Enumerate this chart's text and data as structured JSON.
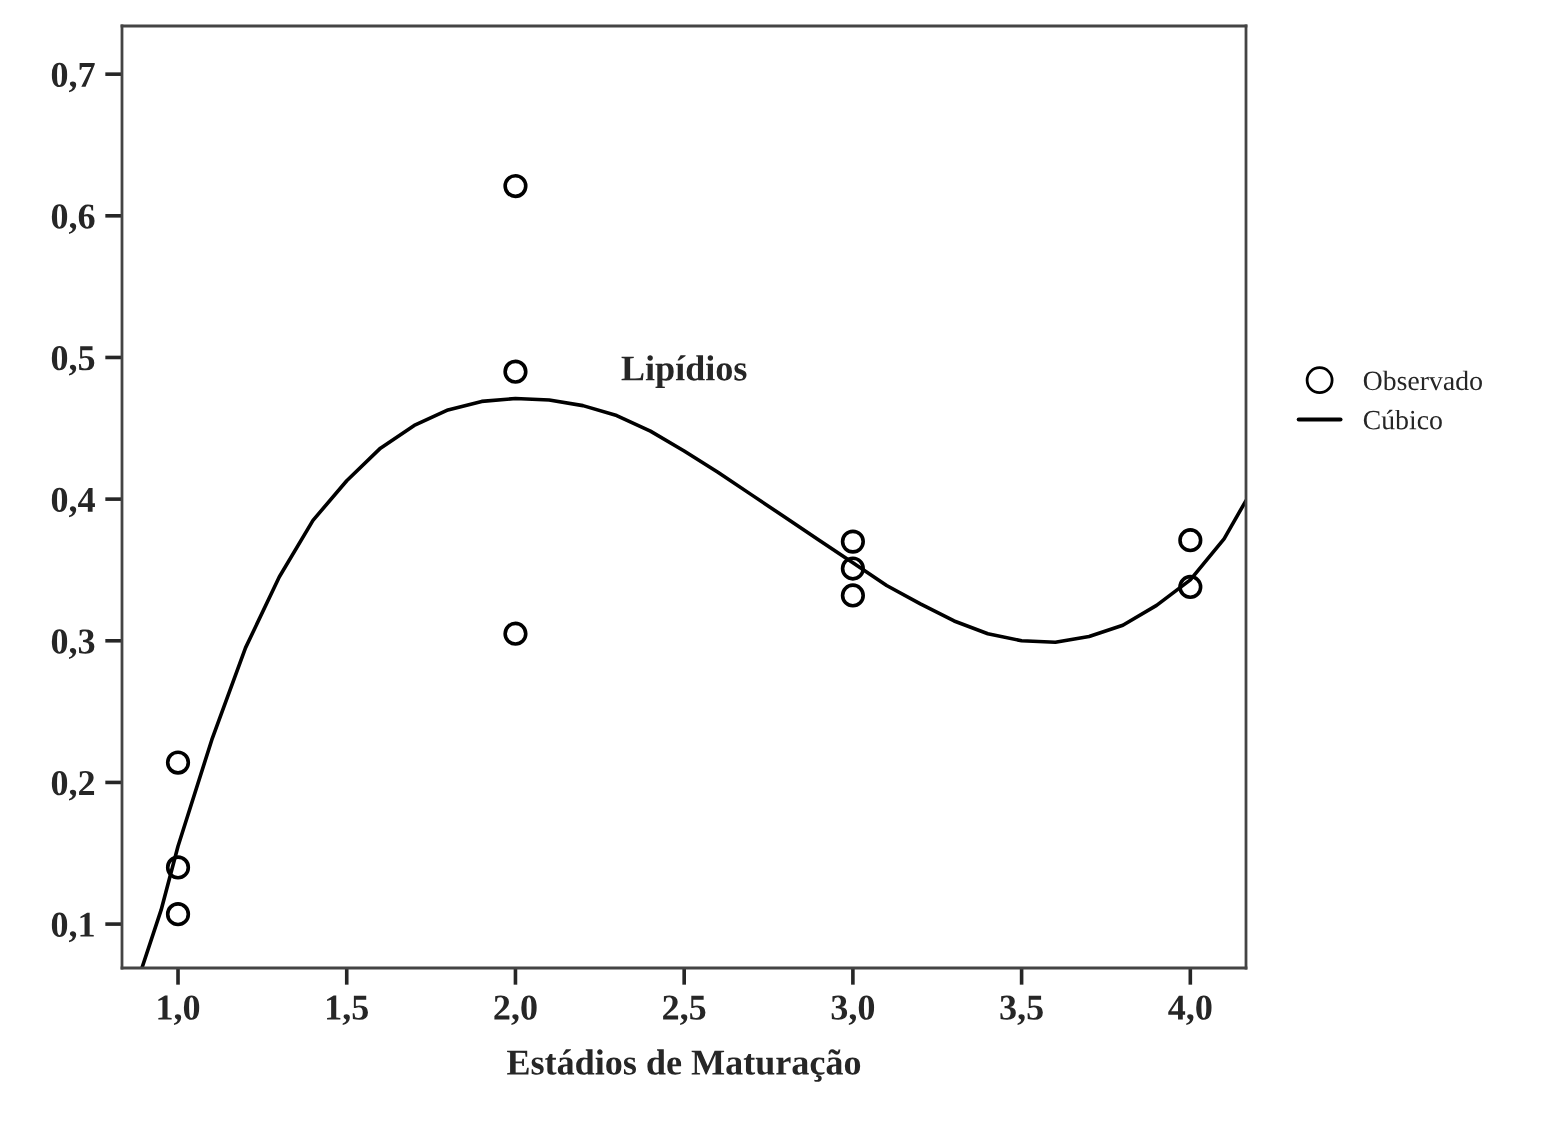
{
  "chart_data": {
    "type": "scatter",
    "title": "Lipídios",
    "xlabel": "Estádios de Maturação",
    "xlim": [
      0.834,
      4.165
    ],
    "ylim": [
      0.069,
      0.734
    ],
    "xticks": [
      {
        "value": 1.0,
        "label": "1,0"
      },
      {
        "value": 1.5,
        "label": "1,5"
      },
      {
        "value": 2.0,
        "label": "2,0"
      },
      {
        "value": 2.5,
        "label": "2,5"
      },
      {
        "value": 3.0,
        "label": "3,0"
      },
      {
        "value": 3.5,
        "label": "3,5"
      },
      {
        "value": 4.0,
        "label": "4,0"
      }
    ],
    "yticks": [
      {
        "value": 0.1,
        "label": "0,1"
      },
      {
        "value": 0.2,
        "label": "0,2"
      },
      {
        "value": 0.3,
        "label": "0,3"
      },
      {
        "value": 0.4,
        "label": "0,4"
      },
      {
        "value": 0.5,
        "label": "0,5"
      },
      {
        "value": 0.6,
        "label": "0,6"
      },
      {
        "value": 0.7,
        "label": "0,7"
      }
    ],
    "grid": false,
    "legend": "right",
    "series": [
      {
        "name": "Observado",
        "marker": "circle",
        "color": "#000000",
        "x": [
          1,
          1,
          1,
          2,
          2,
          2,
          3,
          3,
          3,
          4,
          4
        ],
        "values": [
          0.214,
          0.14,
          0.107,
          0.621,
          0.49,
          0.305,
          0.37,
          0.351,
          0.332,
          0.371,
          0.338
        ]
      },
      {
        "name": "Cúbico",
        "type": "line",
        "line_style": "solid",
        "color": "#000000",
        "x": [
          0.893,
          0.95,
          1.0,
          1.1,
          1.2,
          1.3,
          1.4,
          1.5,
          1.6,
          1.7,
          1.8,
          1.9,
          2.0,
          2.1,
          2.2,
          2.3,
          2.4,
          2.5,
          2.6,
          2.7,
          2.8,
          2.9,
          3.0,
          3.1,
          3.2,
          3.3,
          3.4,
          3.5,
          3.6,
          3.7,
          3.8,
          3.9,
          4.0,
          4.1,
          4.165
        ],
        "values": [
          0.069,
          0.11,
          0.155,
          0.23,
          0.295,
          0.345,
          0.385,
          0.413,
          0.436,
          0.452,
          0.463,
          0.469,
          0.471,
          0.47,
          0.466,
          0.459,
          0.448,
          0.434,
          0.419,
          0.403,
          0.387,
          0.371,
          0.355,
          0.339,
          0.326,
          0.314,
          0.305,
          0.3,
          0.299,
          0.303,
          0.311,
          0.325,
          0.343,
          0.372,
          0.399
        ]
      }
    ]
  }
}
